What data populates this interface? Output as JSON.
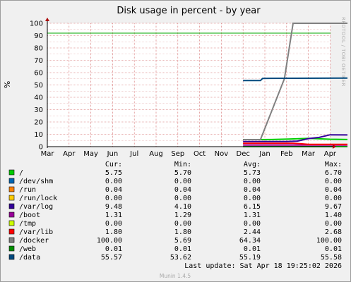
{
  "colors": {
    "background": "#f0f0f0",
    "plot_background": "#ffffff",
    "grid_minor": "#e6b0b0",
    "grid_major": "#d46b6b",
    "warning_line": "#00aa00",
    "axis_arrow": "#aa0000"
  },
  "chart_data": {
    "type": "line",
    "title": "Disk usage in percent - by year",
    "ylabel": "%",
    "ylim": [
      0,
      100
    ],
    "yticks": [
      "0",
      "10",
      "20",
      "30",
      "40",
      "50",
      "60",
      "70",
      "80",
      "90",
      "100"
    ],
    "xticks": [
      "Mar",
      "Apr",
      "May",
      "Jun",
      "Jul",
      "Aug",
      "Sep",
      "Oct",
      "Nov",
      "Dec",
      "Jan",
      "Feb",
      "Mar",
      "Apr"
    ],
    "grid": true,
    "warning_level": 92,
    "series": [
      {
        "name": "/",
        "color": "#00cc00",
        "points": [
          [
            9.0,
            5.7
          ],
          [
            9.6,
            5.7
          ],
          [
            10.3,
            5.75
          ],
          [
            11.1,
            6.2
          ],
          [
            12.0,
            6.7
          ],
          [
            13.0,
            6.0
          ],
          [
            13.8,
            5.75
          ]
        ]
      },
      {
        "name": "/dev/shm",
        "color": "#0066b3",
        "points": [
          [
            9.0,
            0.0
          ],
          [
            13.8,
            0.0
          ]
        ]
      },
      {
        "name": "/run",
        "color": "#ff8000",
        "points": [
          [
            9.0,
            0.04
          ],
          [
            13.8,
            0.04
          ]
        ]
      },
      {
        "name": "/run/lock",
        "color": "#ffcc00",
        "points": [
          [
            9.0,
            0.0
          ],
          [
            13.8,
            0.0
          ]
        ]
      },
      {
        "name": "/var/log",
        "color": "#330099",
        "points": [
          [
            9.0,
            4.1
          ],
          [
            11.0,
            4.2
          ],
          [
            11.5,
            4.5
          ],
          [
            12.0,
            6.5
          ],
          [
            12.5,
            7.5
          ],
          [
            13.0,
            9.6
          ],
          [
            13.8,
            9.48
          ]
        ]
      },
      {
        "name": "/boot",
        "color": "#990099",
        "points": [
          [
            9.0,
            1.29
          ],
          [
            13.8,
            1.31
          ]
        ]
      },
      {
        "name": "/tmp",
        "color": "#ccff00",
        "points": [
          [
            9.0,
            0.0
          ],
          [
            13.8,
            0.0
          ]
        ]
      },
      {
        "name": "/var/lib",
        "color": "#ff0000",
        "points": [
          [
            9.0,
            2.68
          ],
          [
            11.3,
            2.68
          ],
          [
            11.6,
            2.4
          ],
          [
            12.0,
            1.8
          ],
          [
            13.8,
            1.8
          ]
        ]
      },
      {
        "name": "/docker",
        "color": "#808080",
        "points": [
          [
            9.0,
            5.69
          ],
          [
            9.8,
            5.69
          ],
          [
            10.9,
            55.0
          ],
          [
            11.3,
            100.0
          ],
          [
            13.8,
            100.0
          ]
        ]
      },
      {
        "name": "/web",
        "color": "#008f00",
        "points": [
          [
            9.0,
            0.01
          ],
          [
            13.8,
            0.01
          ]
        ]
      },
      {
        "name": "/data",
        "color": "#00487d",
        "points": [
          [
            9.0,
            53.62
          ],
          [
            9.8,
            53.62
          ],
          [
            9.9,
            55.3
          ],
          [
            13.8,
            55.57
          ]
        ]
      }
    ]
  },
  "legend": {
    "headers": {
      "cur": "Cur:",
      "min": "Min:",
      "avg": "Avg:",
      "max": "Max:"
    },
    "rows": [
      {
        "name": "/",
        "cur": "5.75",
        "min": "5.70",
        "avg": "5.73",
        "max": "6.70"
      },
      {
        "name": "/dev/shm",
        "cur": "0.00",
        "min": "0.00",
        "avg": "0.00",
        "max": "0.00"
      },
      {
        "name": "/run",
        "cur": "0.04",
        "min": "0.04",
        "avg": "0.04",
        "max": "0.04"
      },
      {
        "name": "/run/lock",
        "cur": "0.00",
        "min": "0.00",
        "avg": "0.00",
        "max": "0.00"
      },
      {
        "name": "/var/log",
        "cur": "9.48",
        "min": "4.10",
        "avg": "6.15",
        "max": "9.67"
      },
      {
        "name": "/boot",
        "cur": "1.31",
        "min": "1.29",
        "avg": "1.31",
        "max": "1.40"
      },
      {
        "name": "/tmp",
        "cur": "0.00",
        "min": "0.00",
        "avg": "0.00",
        "max": "0.00"
      },
      {
        "name": "/var/lib",
        "cur": "1.80",
        "min": "1.80",
        "avg": "2.44",
        "max": "2.68"
      },
      {
        "name": "/docker",
        "cur": "100.00",
        "min": "5.69",
        "avg": "64.34",
        "max": "100.00"
      },
      {
        "name": "/web",
        "cur": "0.01",
        "min": "0.01",
        "avg": "0.01",
        "max": "0.01"
      },
      {
        "name": "/data",
        "cur": "55.57",
        "min": "53.62",
        "avg": "55.19",
        "max": "55.58"
      }
    ]
  },
  "last_update": "Last update:  Sat Apr 18 19:25:02 2026",
  "side_text": "RRDTOOL / TOBI OETIKER",
  "footer": "Munin 1.4.5"
}
